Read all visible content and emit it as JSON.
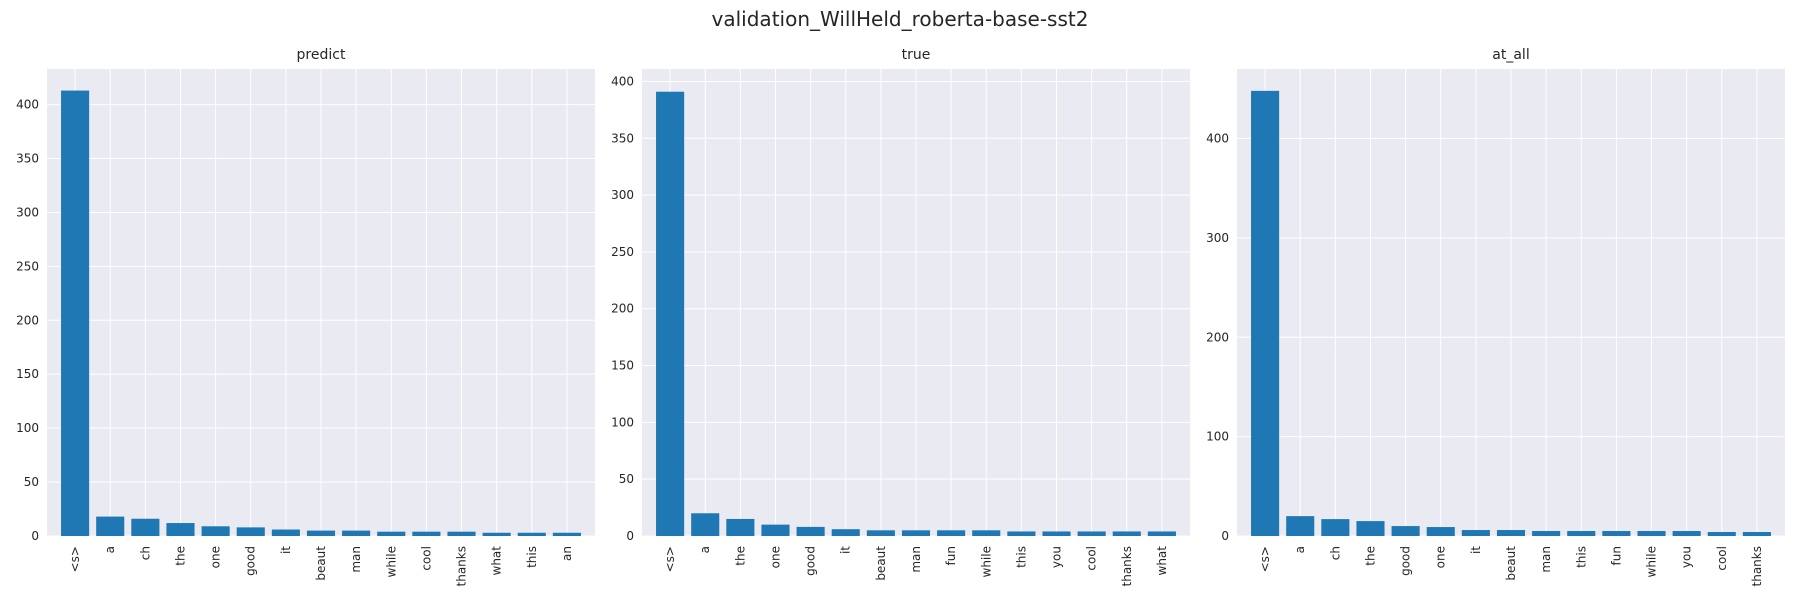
{
  "title": "validation_WillHeld_roberta-base-sst2",
  "colors": {
    "bar": "#1f77b4",
    "axes_bg": "#eaeaf2",
    "grid": "#ffffff",
    "text": "#262626"
  },
  "chart_data": [
    {
      "type": "bar",
      "title": "predict",
      "categories": [
        "<s>",
        "a",
        "ch",
        "the",
        "one",
        "good",
        "it",
        "beaut",
        "man",
        "while",
        "cool",
        "thanks",
        "what",
        "this",
        "an"
      ],
      "values": [
        413,
        18,
        16,
        12,
        9,
        8,
        6,
        5,
        5,
        4,
        4,
        4,
        3,
        3,
        3
      ],
      "ylim": [
        0,
        433
      ],
      "yticks": [
        0,
        50,
        100,
        150,
        200,
        250,
        300,
        350,
        400
      ],
      "grid": true,
      "xlabel": "",
      "ylabel": ""
    },
    {
      "type": "bar",
      "title": "true",
      "categories": [
        "<s>",
        "a",
        "the",
        "one",
        "good",
        "it",
        "beaut",
        "man",
        "fun",
        "while",
        "this",
        "you",
        "cool",
        "thanks",
        "what"
      ],
      "values": [
        391,
        20,
        15,
        10,
        8,
        6,
        5,
        5,
        5,
        5,
        4,
        4,
        4,
        4,
        4
      ],
      "ylim": [
        0,
        411
      ],
      "yticks": [
        0,
        50,
        100,
        150,
        200,
        250,
        300,
        350,
        400
      ],
      "grid": true,
      "xlabel": "",
      "ylabel": ""
    },
    {
      "type": "bar",
      "title": "at_all",
      "categories": [
        "<s>",
        "a",
        "ch",
        "the",
        "good",
        "one",
        "it",
        "beaut",
        "man",
        "this",
        "fun",
        "while",
        "you",
        "cool",
        "thanks"
      ],
      "values": [
        448,
        20,
        17,
        15,
        10,
        9,
        6,
        6,
        5,
        5,
        5,
        5,
        5,
        4,
        4
      ],
      "ylim": [
        0,
        470
      ],
      "yticks": [
        0,
        100,
        200,
        300,
        400
      ],
      "grid": true,
      "xlabel": "",
      "ylabel": ""
    }
  ]
}
